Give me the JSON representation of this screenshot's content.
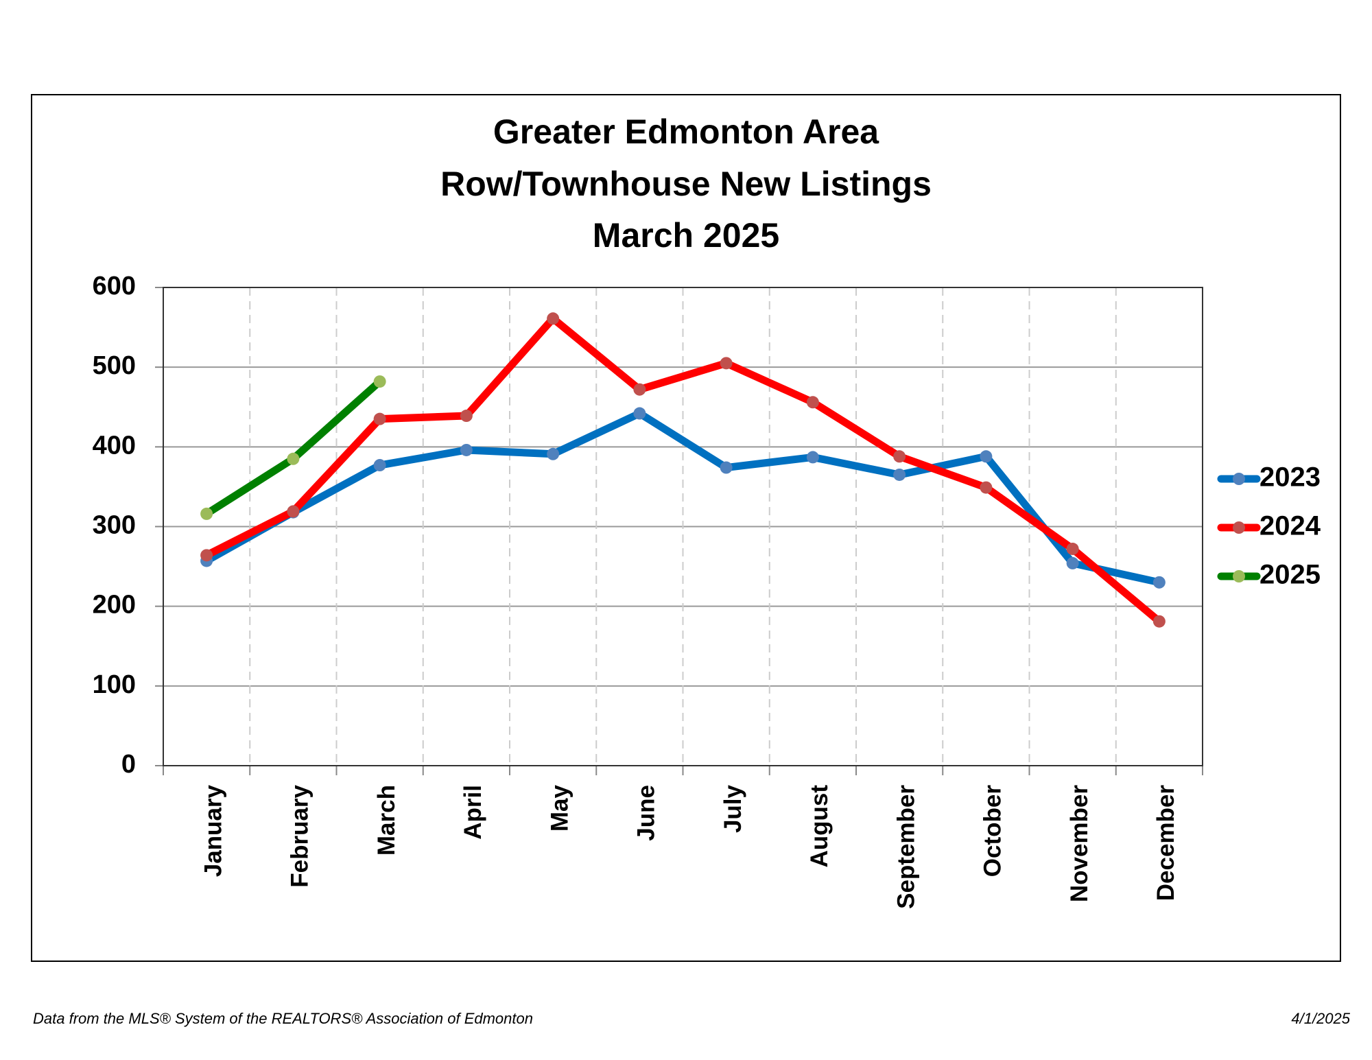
{
  "chart_data": {
    "type": "line",
    "title": [
      "Greater Edmonton Area",
      "Row/Townhouse New Listings",
      "March 2025"
    ],
    "categories": [
      "January",
      "February",
      "March",
      "April",
      "May",
      "June",
      "July",
      "August",
      "September",
      "October",
      "November",
      "December"
    ],
    "series": [
      {
        "name": "2023",
        "color": "#0070c0",
        "marker_color": "#4f81bd",
        "values": [
          257,
          318,
          377,
          396,
          391,
          442,
          374,
          387,
          365,
          388,
          254,
          230
        ]
      },
      {
        "name": "2024",
        "color": "#ff0000",
        "marker_color": "#c0504d",
        "values": [
          264,
          319,
          435,
          439,
          561,
          472,
          505,
          456,
          388,
          349,
          272,
          181
        ]
      },
      {
        "name": "2025",
        "color": "#008000",
        "marker_color": "#9bbb59",
        "values": [
          316,
          385,
          482,
          null,
          null,
          null,
          null,
          null,
          null,
          null,
          null,
          null
        ]
      }
    ],
    "ylim": [
      0,
      600
    ],
    "yticks": [
      0,
      100,
      200,
      300,
      400,
      500,
      600
    ],
    "grid": true,
    "legend": "right",
    "footer": {
      "source": "Data from the MLS® System of the REALTORS® Association of Edmonton",
      "date": "4/1/2025"
    }
  }
}
